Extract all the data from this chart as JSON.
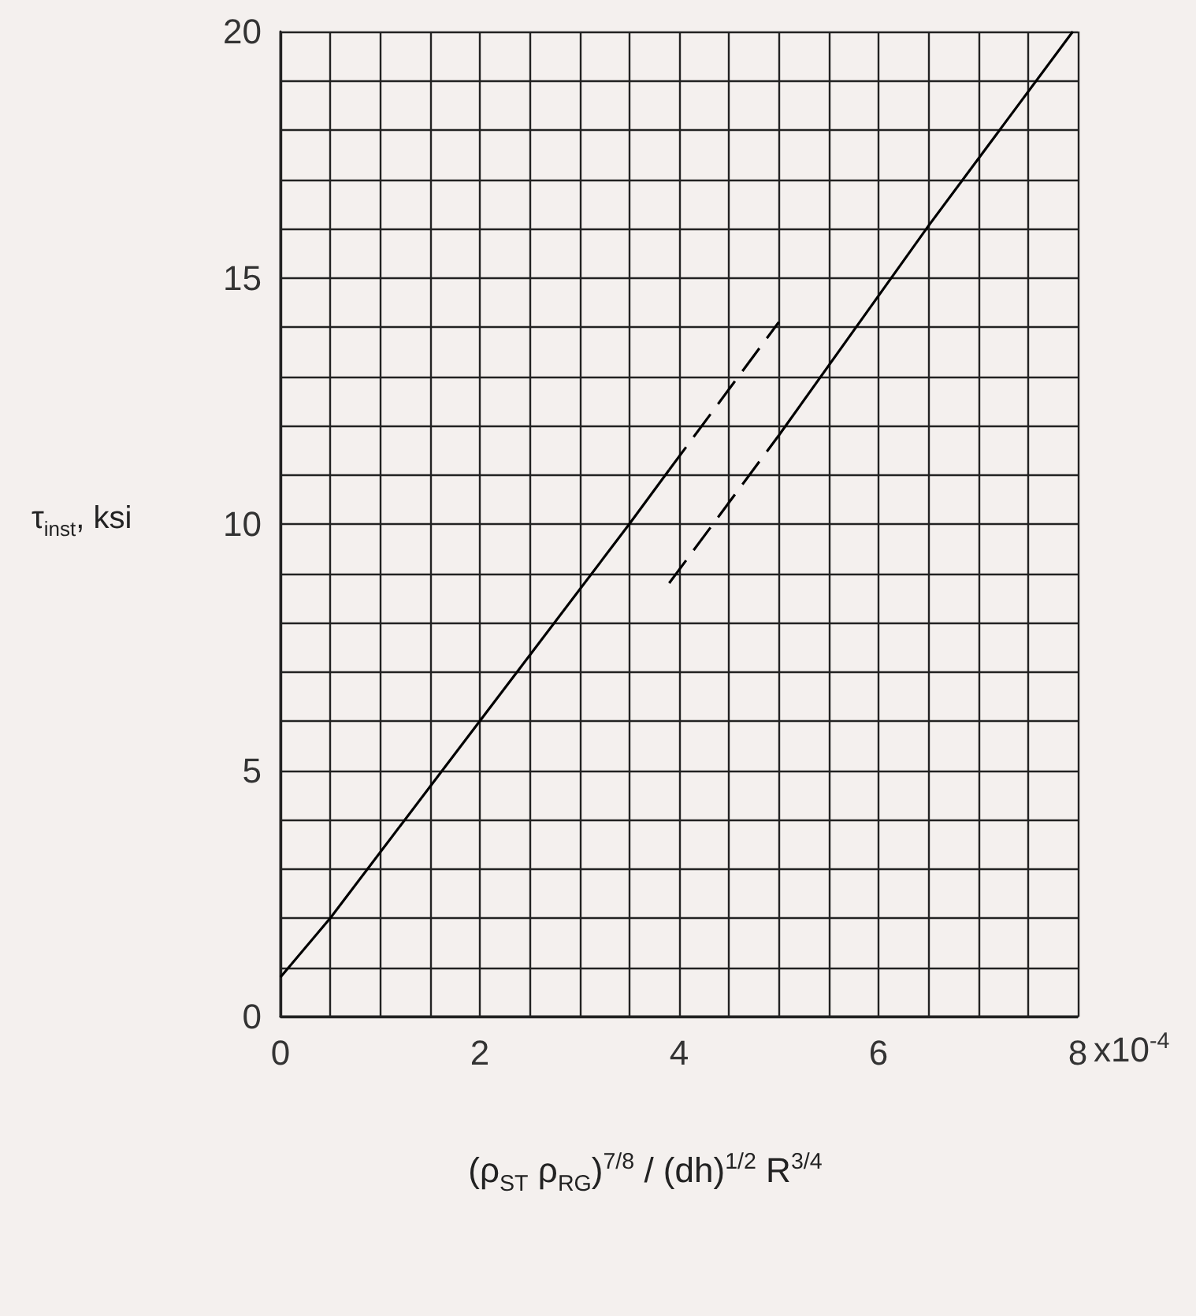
{
  "chart_data": {
    "type": "line",
    "xlabel": "(ρ$_{ST}$ ρ$_{RG}$)$^{7/8}$ / (dh)$^{1/2}$ R$^{3/4}$",
    "ylabel": "τ$_{inst}$, ksi",
    "series": [
      {
        "color": "#000000",
        "line_style": "solid",
        "x": [
          0,
          0.5,
          2,
          3.5,
          3.9
        ],
        "values": [
          0.8,
          2.0,
          6.0,
          10.0,
          11.1
        ]
      },
      {
        "color": "#000000",
        "line_style": "dashed",
        "x": [
          3.9,
          5.0
        ],
        "values": [
          11.1,
          14.1
        ]
      },
      {
        "color": "#000000",
        "line_style": "dashed",
        "x": [
          3.9,
          5.0
        ],
        "values": [
          8.8,
          11.8
        ]
      },
      {
        "color": "#000000",
        "line_style": "solid",
        "x": [
          5.0,
          6.5,
          7.95
        ],
        "values": [
          11.8,
          16.05,
          20
        ]
      }
    ],
    "xlim": [
      0,
      8
    ],
    "ylim": [
      0,
      20
    ],
    "xticks": [
      0,
      {
        "value": 0.5,
        "label": null
      },
      {
        "value": 1,
        "label": null
      },
      {
        "value": 1.5,
        "label": null
      },
      2,
      {
        "value": 2.5,
        "label": null
      },
      {
        "value": 3,
        "label": null
      },
      {
        "value": 3.5,
        "label": null
      },
      4,
      {
        "value": 4.5,
        "label": null
      },
      {
        "value": 5,
        "label": null
      },
      {
        "value": 5.5,
        "label": null
      },
      6,
      {
        "value": 6.5,
        "label": null
      },
      {
        "value": 7,
        "label": null
      },
      {
        "value": 7.5,
        "label": null
      },
      8
    ],
    "annotations": [
      "x10$^{-4}$"
    ],
    "yticks": [
      0,
      {
        "value": 1,
        "label": null
      },
      {
        "value": 2,
        "label": null
      },
      {
        "value": 3,
        "label": null
      },
      {
        "value": 4,
        "label": null
      },
      5,
      {
        "value": 6,
        "label": null
      },
      {
        "value": 7,
        "label": null
      },
      {
        "value": 8,
        "label": null
      },
      {
        "value": 9,
        "label": null
      },
      10,
      {
        "value": 11,
        "label": null
      },
      {
        "value": 12,
        "label": null
      },
      {
        "value": 13,
        "label": null
      },
      {
        "value": 14,
        "label": null
      },
      15,
      {
        "value": 16,
        "label": null
      },
      {
        "value": 17,
        "label": null
      },
      {
        "value": 18,
        "label": null
      },
      {
        "value": 19,
        "label": null
      },
      20
    ],
    "grid": true
  }
}
